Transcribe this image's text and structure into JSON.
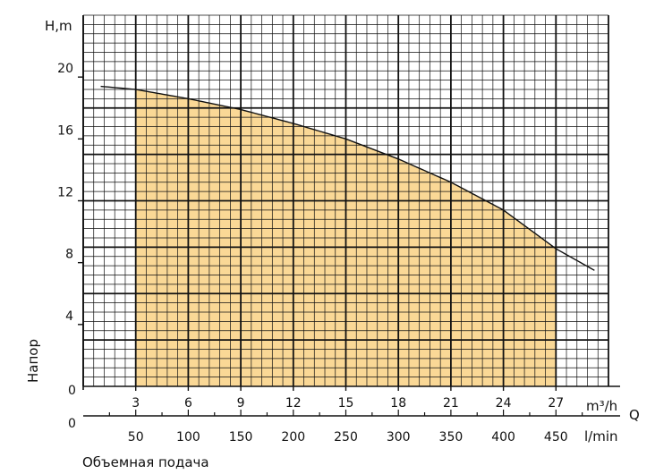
{
  "chart_data": {
    "type": "area",
    "y_unit_label": "H,m",
    "y_axis_label": "Напор",
    "x_axis_label": "Объемная подача",
    "q_label": "Q",
    "x_unit_primary": "m³/h",
    "x_unit_secondary": "l/min",
    "x_ticks_primary": [
      "3",
      "6",
      "9",
      "12",
      "15",
      "18",
      "21",
      "24",
      "27"
    ],
    "x_ticks_secondary": [
      "50",
      "100",
      "150",
      "200",
      "250",
      "300",
      "350",
      "400",
      "450"
    ],
    "x_zero_labels": [
      "0",
      "0"
    ],
    "y_ticks": [
      "4",
      "8",
      "12",
      "16",
      "20"
    ],
    "xlim": [
      0,
      30
    ],
    "ylim": [
      0,
      24
    ],
    "grid": true,
    "shaded_range": [
      3,
      27
    ],
    "curve": [
      {
        "x": 1.0,
        "y": 19.4
      },
      {
        "x": 3.0,
        "y": 19.2
      },
      {
        "x": 6.0,
        "y": 18.6
      },
      {
        "x": 9.0,
        "y": 17.9
      },
      {
        "x": 12.0,
        "y": 17.0
      },
      {
        "x": 15.0,
        "y": 16.0
      },
      {
        "x": 18.0,
        "y": 14.7
      },
      {
        "x": 21.0,
        "y": 13.2
      },
      {
        "x": 24.0,
        "y": 11.4
      },
      {
        "x": 27.0,
        "y": 8.9
      },
      {
        "x": 29.2,
        "y": 7.5
      }
    ],
    "colors": {
      "fill": "#fad896",
      "curve": "#111111",
      "grid": "#111111"
    }
  }
}
